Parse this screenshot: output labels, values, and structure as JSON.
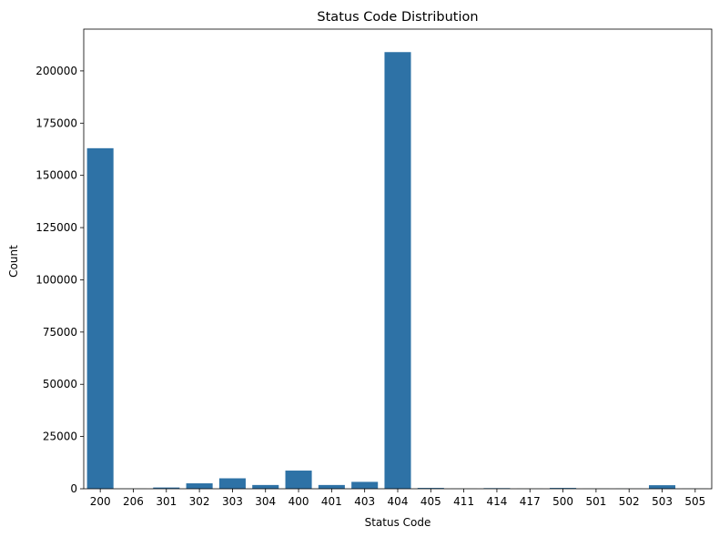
{
  "chart_data": {
    "type": "bar",
    "title": "Status Code Distribution",
    "xlabel": "Status Code",
    "ylabel": "Count",
    "categories": [
      "200",
      "206",
      "301",
      "302",
      "303",
      "304",
      "400",
      "401",
      "403",
      "404",
      "405",
      "411",
      "414",
      "417",
      "500",
      "501",
      "502",
      "503",
      "505"
    ],
    "values": [
      163000,
      50,
      600,
      2600,
      5000,
      1800,
      8700,
      1800,
      3300,
      209000,
      400,
      50,
      300,
      50,
      400,
      50,
      50,
      1700,
      50
    ],
    "ylim": [
      0,
      220000
    ],
    "yticks": [
      0,
      25000,
      50000,
      75000,
      100000,
      125000,
      150000,
      175000,
      200000
    ],
    "ytick_labels": [
      "0",
      "25000",
      "50000",
      "75000",
      "100000",
      "125000",
      "150000",
      "175000",
      "200000"
    ],
    "bar_color": "#2e72a6",
    "grid": false,
    "legend": "none"
  }
}
